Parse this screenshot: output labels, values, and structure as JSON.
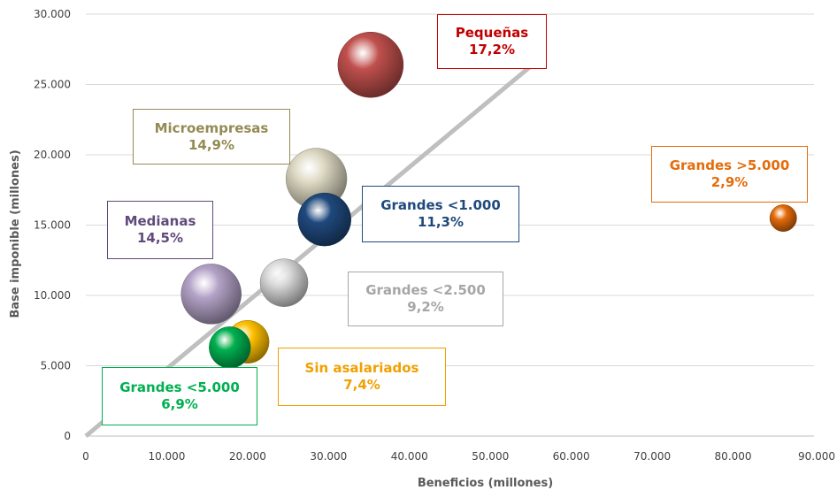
{
  "chart_data": {
    "type": "scatter",
    "title": "",
    "xlabel": "Beneficios (millones)",
    "ylabel": "Base imponible (millones)",
    "xlim": [
      0,
      90000
    ],
    "ylim": [
      0,
      30000
    ],
    "x_ticks": [
      "0",
      "10.000",
      "20.000",
      "30.000",
      "40.000",
      "50.000",
      "60.000",
      "70.000",
      "80.000",
      "90.000"
    ],
    "y_ticks": [
      "0",
      "5.000",
      "10.000",
      "15.000",
      "20.000",
      "25.000",
      "30.000"
    ],
    "grid": "horizontal",
    "trendline": {
      "x": [
        0,
        55000
      ],
      "y": [
        0,
        26300
      ],
      "color": "#bfbfbf"
    },
    "series": [
      {
        "name": "Pequeñas",
        "pct": "17,2%",
        "x": 35200,
        "y": 26400,
        "size": 17.2,
        "color": "#c0504d",
        "label_color": "#c00000"
      },
      {
        "name": "Microempresas",
        "pct": "14,9%",
        "x": 28500,
        "y": 18300,
        "size": 14.9,
        "color": "#ddd9c3",
        "label_color": "#948a54"
      },
      {
        "name": "Medianas",
        "pct": "14,5%",
        "x": 15500,
        "y": 10100,
        "size": 14.5,
        "color": "#b3a2c7",
        "label_color": "#604a7b"
      },
      {
        "name": "Grandes <1.000",
        "pct": "11,3%",
        "x": 29500,
        "y": 15400,
        "size": 11.3,
        "color": "#1f497d",
        "label_color": "#1f497d"
      },
      {
        "name": "Grandes <2.500",
        "pct": "9,2%",
        "x": 24500,
        "y": 10900,
        "size": 9.2,
        "color": "#d9d9d9",
        "label_color": "#a6a6a6"
      },
      {
        "name": "Sin asalariados",
        "pct": "7,4%",
        "x": 20000,
        "y": 6700,
        "size": 7.4,
        "color": "#ffc000",
        "label_color": "#f0a000"
      },
      {
        "name": "Grandes <5.000",
        "pct": "6,9%",
        "x": 17800,
        "y": 6300,
        "size": 6.9,
        "color": "#00b050",
        "label_color": "#00b050"
      },
      {
        "name": "Grandes >5.000",
        "pct": "2,9%",
        "x": 86200,
        "y": 15500,
        "size": 2.9,
        "color": "#e46c0a",
        "label_color": "#e46c0a"
      }
    ]
  }
}
